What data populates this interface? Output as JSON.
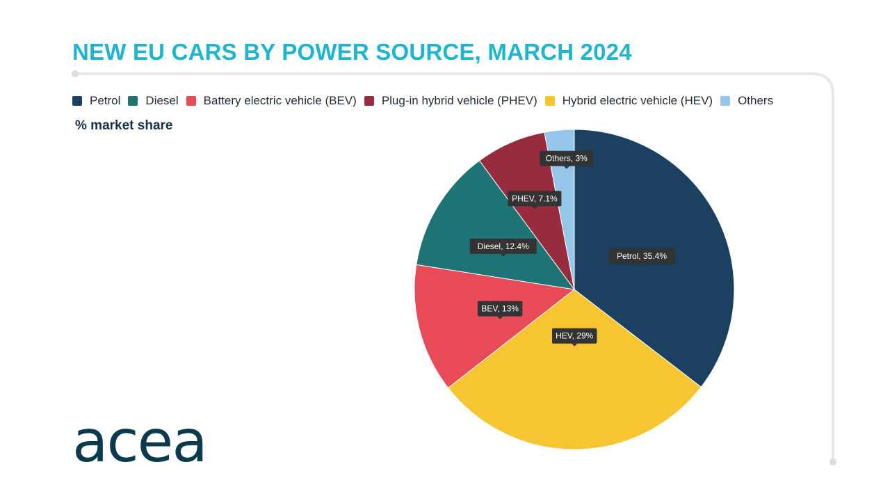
{
  "title": "NEW EU CARS BY POWER SOURCE, MARCH 2024",
  "subtitle": "% market share",
  "logo_text": "acea",
  "colors": {
    "title": "#1fb5d0",
    "frame": "#e8e8e8",
    "tooltip_bg": "#333333"
  },
  "legend": [
    {
      "label": "Petrol",
      "color": "#1c4060"
    },
    {
      "label": "Diesel",
      "color": "#1e7474"
    },
    {
      "label": "Battery electric vehicle (BEV)",
      "color": "#e84a57"
    },
    {
      "label": "Plug-in hybrid vehicle (PHEV)",
      "color": "#962c3e"
    },
    {
      "label": "Hybrid electric vehicle (HEV)",
      "color": "#f7c531"
    },
    {
      "label": "Others",
      "color": "#93c6e8"
    }
  ],
  "chart_data": {
    "type": "pie",
    "title": "NEW EU CARS BY POWER SOURCE, MARCH 2024",
    "ylabel": "% market share",
    "legend_position": "top",
    "slices": [
      {
        "label": "Petrol",
        "value": 35.4,
        "color": "#1c4060",
        "data_label": "Petrol, 35.4%"
      },
      {
        "label": "HEV",
        "value": 29,
        "color": "#f7c531",
        "data_label": "HEV, 29%"
      },
      {
        "label": "BEV",
        "value": 13,
        "color": "#e84a57",
        "data_label": "BEV, 13%"
      },
      {
        "label": "Diesel",
        "value": 12.4,
        "color": "#1e7474",
        "data_label": "Diesel, 12.4%"
      },
      {
        "label": "PHEV",
        "value": 7.1,
        "color": "#962c3e",
        "data_label": "PHEV, 7.1%"
      },
      {
        "label": "Others",
        "value": 3,
        "color": "#93c6e8",
        "data_label": "Others, 3%"
      }
    ]
  }
}
